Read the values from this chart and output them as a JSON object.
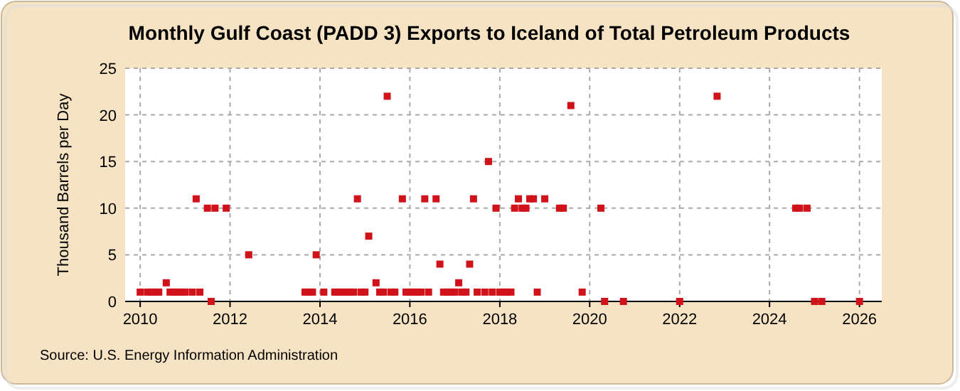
{
  "chart_data": {
    "type": "scatter",
    "title": "Monthly Gulf Coast (PADD 3) Exports to Iceland of Total Petroleum Products",
    "ylabel": "Thousand Barrels per Day",
    "annotations": [
      "Source: U.S. Energy Information Administration"
    ],
    "x": [
      "2010-01",
      "2010-03",
      "2010-04",
      "2010-05",
      "2010-06",
      "2010-08",
      "2010-09",
      "2010-10",
      "2010-11",
      "2010-12",
      "2011-01",
      "2011-03",
      "2011-04",
      "2011-05",
      "2011-07",
      "2011-08",
      "2011-09",
      "2011-12",
      "2012-06",
      "2013-09",
      "2013-10",
      "2013-11",
      "2013-12",
      "2014-02",
      "2014-05",
      "2014-06",
      "2014-07",
      "2014-08",
      "2014-09",
      "2014-10",
      "2014-11",
      "2014-12",
      "2015-01",
      "2015-02",
      "2015-04",
      "2015-05",
      "2015-06",
      "2015-07",
      "2015-08",
      "2015-09",
      "2015-11",
      "2015-12",
      "2016-01",
      "2016-02",
      "2016-03",
      "2016-04",
      "2016-05",
      "2016-06",
      "2016-08",
      "2016-09",
      "2016-10",
      "2016-11",
      "2016-12",
      "2017-01",
      "2017-02",
      "2017-03",
      "2017-04",
      "2017-05",
      "2017-06",
      "2017-07",
      "2017-09",
      "2017-10",
      "2017-11",
      "2017-12",
      "2018-01",
      "2018-02",
      "2018-03",
      "2018-04",
      "2018-05",
      "2018-06",
      "2018-07",
      "2018-08",
      "2018-09",
      "2018-10",
      "2018-11",
      "2019-01",
      "2019-05",
      "2019-06",
      "2019-08",
      "2019-11",
      "2020-04",
      "2020-05",
      "2020-10",
      "2022-01",
      "2022-11",
      "2024-08",
      "2024-09",
      "2024-11",
      "2025-01",
      "2025-03",
      "2026-01"
    ],
    "series": [
      {
        "color": "#d0121b",
        "values": [
          1,
          1,
          1,
          1,
          1,
          2,
          1,
          1,
          1,
          1,
          1,
          1,
          11,
          1,
          10,
          0,
          10,
          10,
          5,
          1,
          1,
          1,
          5,
          1,
          1,
          1,
          1,
          1,
          1,
          1,
          11,
          1,
          1,
          7,
          2,
          1,
          1,
          22,
          1,
          1,
          11,
          1,
          1,
          1,
          1,
          1,
          11,
          1,
          11,
          4,
          1,
          1,
          1,
          1,
          2,
          1,
          1,
          4,
          11,
          1,
          1,
          15,
          1,
          10,
          1,
          1,
          1,
          1,
          10,
          11,
          10,
          10,
          11,
          11,
          1,
          11,
          10,
          10,
          21,
          1,
          10,
          0,
          0,
          0,
          22,
          10,
          10,
          10,
          0,
          0,
          0
        ]
      }
    ],
    "xlim": [
      "2009-09",
      "2026-07"
    ],
    "xticks": [
      {
        "value": "2010-01",
        "label": "2010"
      },
      {
        "value": "2012-01",
        "label": "2012"
      },
      {
        "value": "2014-01",
        "label": "2014"
      },
      {
        "value": "2016-01",
        "label": "2016"
      },
      {
        "value": "2018-01",
        "label": "2018"
      },
      {
        "value": "2020-01",
        "label": "2020"
      },
      {
        "value": "2022-01",
        "label": "2022"
      },
      {
        "value": "2024-01",
        "label": "2024"
      },
      {
        "value": "2026-01",
        "label": "2026"
      }
    ],
    "ylim": [
      0,
      25
    ],
    "yticks": [
      0,
      5,
      10,
      15,
      20,
      25
    ],
    "grid": true,
    "marker": "square"
  }
}
